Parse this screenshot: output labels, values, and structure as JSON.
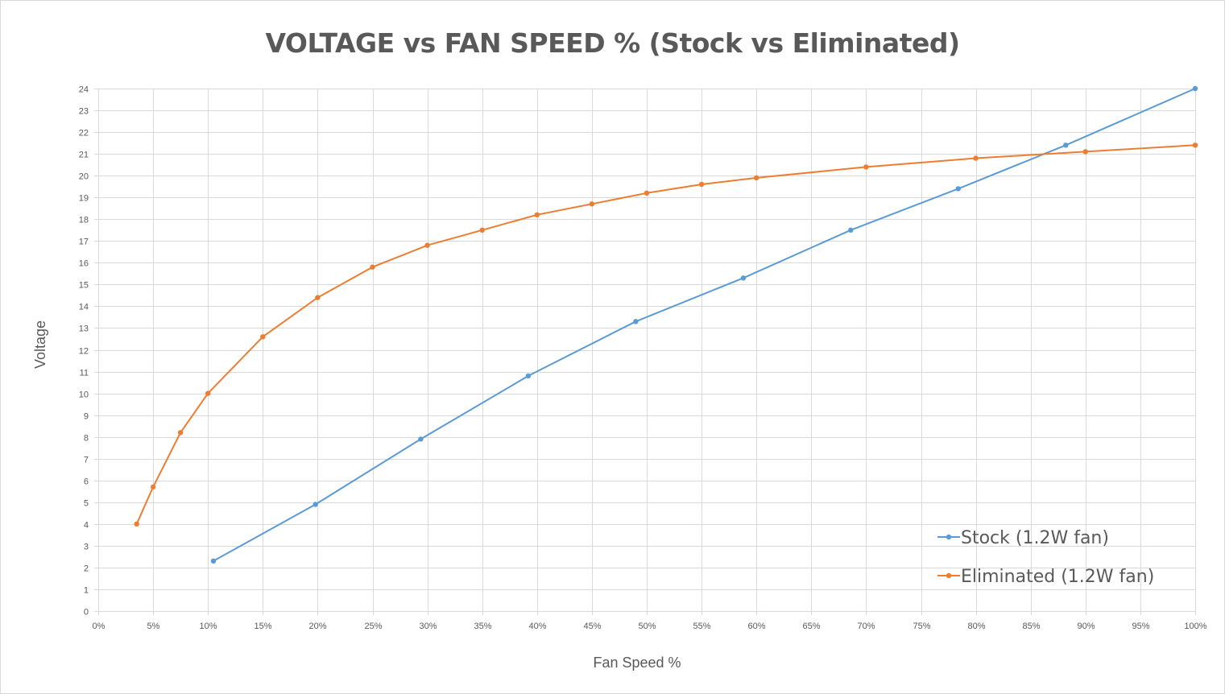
{
  "chart_data": {
    "type": "line",
    "title": "VOLTAGE vs FAN SPEED % (Stock vs Eliminated)",
    "xlabel": "Fan Speed %",
    "ylabel": "Voltage",
    "xlim": [
      0,
      100
    ],
    "ylim": [
      0,
      24
    ],
    "x_ticks": [
      "0%",
      "5%",
      "10%",
      "15%",
      "20%",
      "25%",
      "30%",
      "35%",
      "40%",
      "45%",
      "50%",
      "55%",
      "60%",
      "65%",
      "70%",
      "75%",
      "80%",
      "85%",
      "90%",
      "95%",
      "100%"
    ],
    "y_ticks": [
      "0",
      "1",
      "2",
      "3",
      "4",
      "5",
      "6",
      "7",
      "8",
      "9",
      "10",
      "11",
      "12",
      "13",
      "14",
      "15",
      "16",
      "17",
      "18",
      "19",
      "20",
      "21",
      "22",
      "23",
      "24"
    ],
    "grid": true,
    "legend_position": "bottom-right",
    "series": [
      {
        "name": "Stock (1.2W fan)",
        "color": "#5b9bd5",
        "x": [
          10.5,
          19.8,
          29.4,
          39.2,
          49.0,
          58.8,
          68.6,
          78.4,
          88.2,
          100
        ],
        "y": [
          2.3,
          4.9,
          7.9,
          10.8,
          13.3,
          15.3,
          17.5,
          19.4,
          21.4,
          24.0
        ]
      },
      {
        "name": "Eliminated (1.2W fan)",
        "color": "#ed7d31",
        "x": [
          3.5,
          5,
          7.5,
          10,
          15,
          20,
          25,
          30,
          35,
          40,
          45,
          50,
          55,
          60,
          70,
          80,
          90,
          100
        ],
        "y": [
          4.0,
          5.7,
          8.2,
          10.0,
          12.6,
          14.4,
          15.8,
          16.8,
          17.5,
          18.2,
          18.7,
          19.2,
          19.6,
          19.9,
          20.4,
          20.8,
          21.1,
          21.4
        ]
      }
    ]
  }
}
